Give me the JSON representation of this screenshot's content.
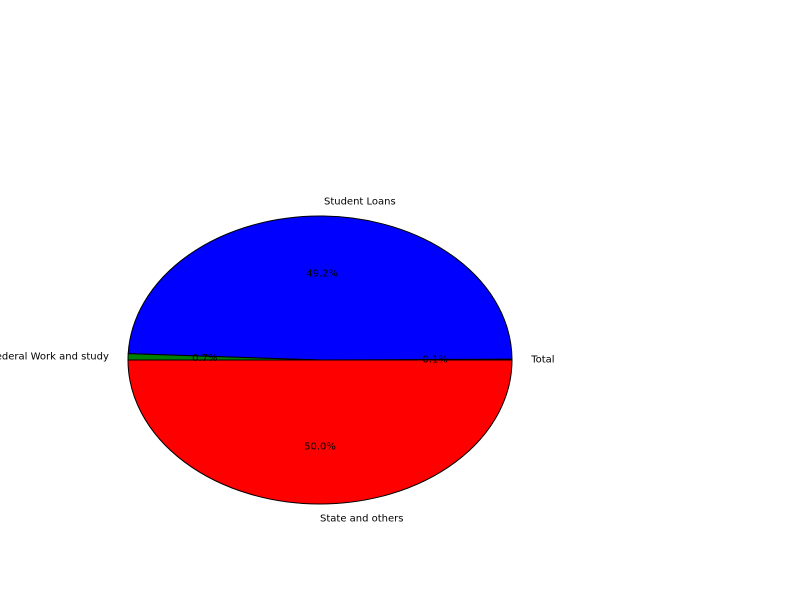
{
  "chart_data": {
    "type": "pie",
    "title": "",
    "slices": [
      {
        "label": "Total",
        "value": 0.1,
        "pct_label": "0.1%",
        "color": "#0000ff"
      },
      {
        "label": "Student Loans",
        "value": 49.2,
        "pct_label": "49.2%",
        "color": "#0000ff"
      },
      {
        "label": "Federal Work and study",
        "value": 0.7,
        "pct_label": "0.7%",
        "color": "#008000"
      },
      {
        "label": "State and others",
        "value": 50.0,
        "pct_label": "50.0%",
        "color": "#ff0000"
      }
    ],
    "start_angle_deg": 0,
    "direction": "counterclockwise",
    "legend": "none",
    "grid": false
  }
}
